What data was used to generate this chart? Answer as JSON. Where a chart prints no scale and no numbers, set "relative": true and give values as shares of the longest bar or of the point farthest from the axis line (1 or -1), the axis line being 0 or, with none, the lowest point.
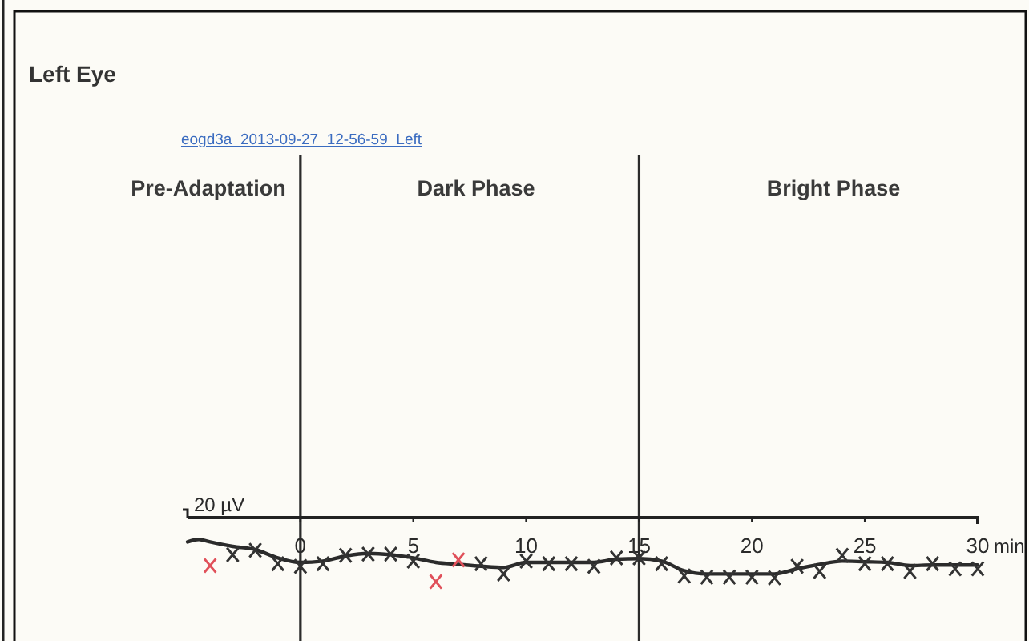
{
  "chart_data": {
    "type": "line",
    "title": "Left Eye",
    "subtitle": "eogd3a_2013-09-27_12-56-59_Left",
    "xlabel": "min",
    "ylabel": "20 µV",
    "relative": true,
    "xlim": [
      -5,
      30
    ],
    "xticks": [
      0,
      5,
      10,
      15,
      20,
      25,
      30
    ],
    "ref_lines": [
      {
        "axis": "x",
        "value": 0,
        "color": "#2b2b2b"
      },
      {
        "axis": "x",
        "value": 15,
        "color": "#2b2b2b"
      }
    ],
    "annotations": [
      "Pre-Adaptation",
      "Dark Phase",
      "Bright Phase"
    ],
    "series": [
      {
        "type": "line",
        "color": "#2b2b2b",
        "marker": "none",
        "x": [
          -5,
          -4.5,
          -4,
          -3,
          -2,
          -1,
          0,
          1,
          2,
          3,
          4,
          5,
          6,
          7,
          8,
          9,
          10,
          11,
          12,
          13,
          14,
          15,
          16,
          17,
          18,
          19,
          20,
          21,
          22,
          23,
          24,
          25,
          26,
          27,
          28,
          29,
          30
        ],
        "values": [
          -0.38,
          -0.34,
          -0.38,
          -0.45,
          -0.5,
          -0.63,
          -0.7,
          -0.68,
          -0.6,
          -0.56,
          -0.58,
          -0.63,
          -0.7,
          -0.73,
          -0.76,
          -0.78,
          -0.7,
          -0.7,
          -0.7,
          -0.7,
          -0.65,
          -0.64,
          -0.68,
          -0.83,
          -0.88,
          -0.88,
          -0.88,
          -0.88,
          -0.8,
          -0.73,
          -0.68,
          -0.69,
          -0.7,
          -0.75,
          -0.74,
          -0.74,
          -0.74
        ]
      },
      {
        "type": "scatter",
        "color": "#333333",
        "marker": "cross",
        "x": [
          -3,
          -2,
          -1,
          0,
          1,
          2,
          3,
          4,
          5,
          8,
          9,
          10,
          11,
          12,
          13,
          14,
          15,
          16,
          17,
          18,
          19,
          20,
          21,
          22,
          23,
          24,
          25,
          26,
          27,
          28,
          29,
          30
        ],
        "values": [
          -0.58,
          -0.51,
          -0.72,
          -0.76,
          -0.72,
          -0.59,
          -0.57,
          -0.57,
          -0.68,
          -0.72,
          -0.88,
          -0.68,
          -0.72,
          -0.72,
          -0.76,
          -0.63,
          -0.63,
          -0.72,
          -0.91,
          -0.93,
          -0.93,
          -0.93,
          -0.94,
          -0.76,
          -0.84,
          -0.59,
          -0.72,
          -0.72,
          -0.84,
          -0.72,
          -0.8,
          -0.8
        ]
      },
      {
        "type": "scatter",
        "color": "#e0505a",
        "marker": "cross",
        "x": [
          -4,
          6,
          7
        ],
        "values": [
          -0.75,
          -1,
          -0.66
        ]
      }
    ]
  }
}
